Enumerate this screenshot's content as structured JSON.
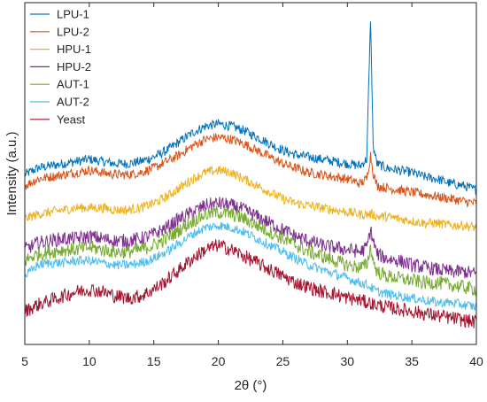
{
  "chart_data": {
    "type": "line",
    "title": "",
    "xlabel": "2θ (°)",
    "ylabel": "Intensity (a.u.)",
    "xlim": [
      5,
      40
    ],
    "xticks": [
      5,
      10,
      15,
      20,
      25,
      30,
      35,
      40
    ],
    "x_tick_labels": [
      "5",
      "10",
      "15",
      "20",
      "25",
      "30",
      "35",
      "40"
    ],
    "y_ticks_shown": false,
    "grid": false,
    "legend_position": "top-left",
    "x": [
      5,
      6,
      7,
      8,
      9,
      10,
      11,
      12,
      13,
      14,
      15,
      16,
      17,
      18,
      19,
      20,
      21,
      22,
      23,
      24,
      25,
      26,
      27,
      28,
      29,
      30,
      31,
      31.5,
      31.8,
      32,
      32.3,
      33,
      34,
      35,
      36,
      37,
      38,
      39,
      40
    ],
    "series": [
      {
        "name": "LPU-1",
        "color": "#0072BD",
        "values": [
          7.7,
          8.0,
          8.1,
          8.2,
          8.3,
          8.4,
          8.3,
          8.2,
          8.2,
          8.3,
          8.5,
          8.8,
          9.2,
          9.6,
          9.9,
          10.0,
          9.9,
          9.7,
          9.4,
          9.1,
          8.8,
          8.6,
          8.5,
          8.4,
          8.3,
          8.2,
          8.1,
          8.4,
          14.8,
          9.0,
          8.2,
          8.0,
          7.9,
          7.8,
          7.6,
          7.5,
          7.3,
          7.2,
          7.0
        ]
      },
      {
        "name": "LPU-2",
        "color": "#D95319",
        "values": [
          7.2,
          7.5,
          7.6,
          7.7,
          7.8,
          7.9,
          7.8,
          7.7,
          7.7,
          7.8,
          8.0,
          8.3,
          8.6,
          9.0,
          9.3,
          9.4,
          9.3,
          9.1,
          8.8,
          8.5,
          8.2,
          8.0,
          7.8,
          7.7,
          7.6,
          7.5,
          7.3,
          7.5,
          8.6,
          7.8,
          7.2,
          7.1,
          7.0,
          6.9,
          6.8,
          6.7,
          6.6,
          6.5,
          6.4
        ]
      },
      {
        "name": "HPU-1",
        "color": "#EDB120",
        "values": [
          5.7,
          5.9,
          6.0,
          6.1,
          6.2,
          6.2,
          6.2,
          6.1,
          6.1,
          6.2,
          6.4,
          6.7,
          7.1,
          7.5,
          7.8,
          7.9,
          7.8,
          7.5,
          7.2,
          6.9,
          6.6,
          6.4,
          6.3,
          6.2,
          6.1,
          6.0,
          5.9,
          5.9,
          5.9,
          5.9,
          5.8,
          5.8,
          5.7,
          5.6,
          5.5,
          5.5,
          5.4,
          5.4,
          5.3
        ]
      },
      {
        "name": "HPU-2",
        "color": "#7E2F8E",
        "values": [
          4.3,
          4.6,
          4.7,
          4.8,
          4.8,
          4.9,
          4.8,
          4.7,
          4.7,
          4.8,
          5.0,
          5.3,
          5.7,
          6.0,
          6.3,
          6.4,
          6.3,
          6.1,
          5.8,
          5.5,
          5.2,
          4.9,
          4.7,
          4.5,
          4.4,
          4.3,
          4.2,
          4.4,
          5.2,
          4.7,
          4.1,
          3.9,
          3.8,
          3.6,
          3.5,
          3.4,
          3.3,
          3.3,
          3.2
        ]
      },
      {
        "name": "AUT-1",
        "color": "#77AC30",
        "values": [
          3.8,
          4.1,
          4.2,
          4.3,
          4.3,
          4.4,
          4.3,
          4.2,
          4.2,
          4.3,
          4.5,
          4.8,
          5.2,
          5.6,
          5.9,
          6.0,
          5.9,
          5.7,
          5.4,
          5.1,
          4.8,
          4.5,
          4.2,
          4.0,
          3.8,
          3.6,
          3.5,
          3.6,
          4.4,
          3.8,
          3.3,
          3.1,
          3.0,
          2.9,
          2.8,
          2.8,
          2.7,
          2.6,
          2.5
        ]
      },
      {
        "name": "AUT-2",
        "color": "#4DBEEE",
        "values": [
          3.1,
          3.6,
          3.7,
          3.7,
          3.8,
          3.8,
          3.7,
          3.6,
          3.6,
          3.7,
          3.9,
          4.2,
          4.6,
          5.0,
          5.3,
          5.4,
          5.3,
          5.1,
          4.8,
          4.5,
          4.2,
          3.9,
          3.6,
          3.4,
          3.2,
          3.0,
          2.8,
          2.7,
          2.6,
          2.5,
          2.4,
          2.3,
          2.2,
          2.1,
          2.0,
          1.9,
          1.9,
          1.8,
          1.7
        ]
      },
      {
        "name": "Yeast",
        "color": "#A2142F",
        "values": [
          1.5,
          1.8,
          2.0,
          2.2,
          2.4,
          2.5,
          2.4,
          2.2,
          2.1,
          2.2,
          2.5,
          2.9,
          3.4,
          3.9,
          4.3,
          4.5,
          4.3,
          4.0,
          3.7,
          3.4,
          3.1,
          2.8,
          2.6,
          2.4,
          2.3,
          2.1,
          2.0,
          1.9,
          1.9,
          1.8,
          1.8,
          1.7,
          1.6,
          1.5,
          1.4,
          1.3,
          1.2,
          1.1,
          1.0
        ]
      }
    ]
  }
}
